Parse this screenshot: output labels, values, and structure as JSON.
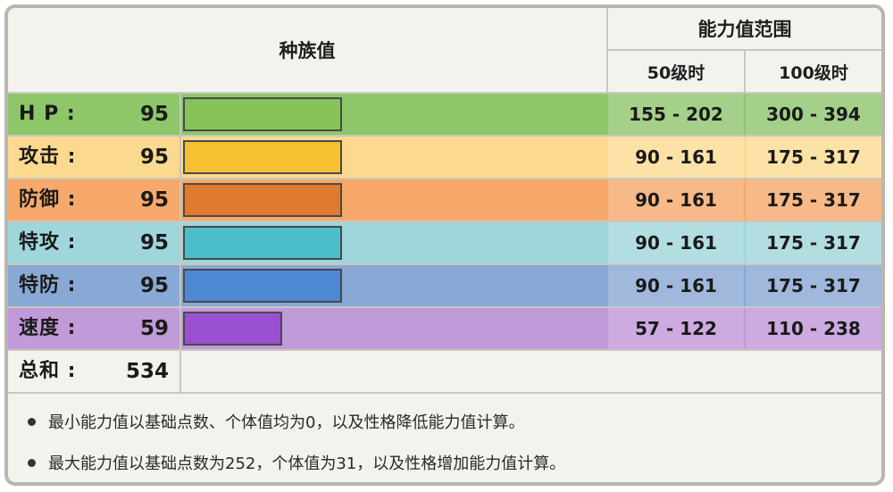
{
  "header": {
    "base_stats_title": "种族值",
    "range_title": "能力值范围",
    "level50_label": "50级时",
    "level100_label": "100级时"
  },
  "stats": [
    {
      "name": "hp",
      "label": "H P :",
      "value": "95",
      "fill": 0.378,
      "range50": "155 - 202",
      "range100": "300 - 394",
      "row_color": "#8dc76a",
      "bar_color": "#86c35a",
      "range_bg": "#a5d08a"
    },
    {
      "name": "attack",
      "label": "攻击 :",
      "value": "95",
      "fill": 0.378,
      "range50": "90 - 161",
      "range100": "175 - 317",
      "row_color": "#fbd98e",
      "bar_color": "#f7c033",
      "range_bg": "#fce2a6"
    },
    {
      "name": "defense",
      "label": "防御 :",
      "value": "95",
      "fill": 0.378,
      "range50": "90 - 161",
      "range100": "175 - 317",
      "row_color": "#f6a96a",
      "bar_color": "#df7a2e",
      "range_bg": "#f7b987"
    },
    {
      "name": "sp-attack",
      "label": "特攻 :",
      "value": "95",
      "fill": 0.378,
      "range50": "90 - 161",
      "range100": "175 - 317",
      "row_color": "#9fd6db",
      "bar_color": "#4bbfca",
      "range_bg": "#b2dde1"
    },
    {
      "name": "sp-defense",
      "label": "特防 :",
      "value": "95",
      "fill": 0.378,
      "range50": "90 - 161",
      "range100": "175 - 317",
      "row_color": "#88a8d5",
      "bar_color": "#4f88d2",
      "range_bg": "#9fb8dc"
    },
    {
      "name": "speed",
      "label": "速度 :",
      "value": "59",
      "fill": 0.235,
      "range50": "57 - 122",
      "range100": "110 - 238",
      "row_color": "#c19ad9",
      "bar_color": "#9b4fd2",
      "range_bg": "#cdaae0"
    }
  ],
  "total": {
    "label": "总和 :",
    "value": "534"
  },
  "notes": [
    "最小能力值以基础点数、个体值均为0，以及性格降低能力值计算。",
    "最大能力值以基础点数为252，个体值为31，以及性格增加能力值计算。"
  ]
}
